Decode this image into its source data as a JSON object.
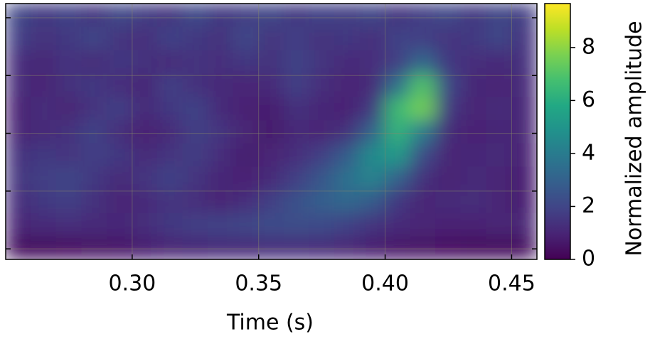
{
  "chart_data": {
    "type": "heatmap",
    "colormap": "viridis",
    "grid": true,
    "ylog": true,
    "xlabel": "Time (s)",
    "colorbar_label": "Normalized amplitude",
    "xlim": [
      0.25,
      0.46
    ],
    "xticks": [
      {
        "value": 0.3,
        "label": "0.30"
      },
      {
        "value": 0.35,
        "label": "0.35"
      },
      {
        "value": 0.4,
        "label": "0.40"
      },
      {
        "value": 0.45,
        "label": "0.45"
      }
    ],
    "ylim": [
      28.2,
      607
    ],
    "yticks": [
      32,
      64,
      128,
      256,
      512
    ],
    "clim": [
      0,
      9.66
    ],
    "cticks": [
      0,
      2,
      4,
      6,
      8
    ],
    "x": [
      0.255,
      0.265,
      0.275,
      0.285,
      0.295,
      0.305,
      0.315,
      0.325,
      0.335,
      0.345,
      0.355,
      0.365,
      0.375,
      0.385,
      0.395,
      0.405,
      0.415,
      0.425,
      0.435,
      0.445,
      0.455
    ],
    "y": [
      32.4,
      42.9,
      56.7,
      75,
      99,
      131,
      173,
      229,
      303,
      401,
      530
    ],
    "z": [
      [
        0.3,
        0.3,
        0.4,
        0.5,
        0.6,
        0.8,
        1.0,
        1.1,
        1.2,
        1.2,
        1.3,
        1.3,
        1.2,
        1.0,
        0.8,
        0.6,
        0.5,
        0.4,
        0.3,
        0.3,
        0.3
      ],
      [
        1.0,
        1.2,
        1.3,
        1.2,
        1.1,
        1.3,
        1.6,
        1.8,
        1.9,
        2.0,
        2.2,
        2.3,
        2.2,
        1.9,
        1.5,
        1.2,
        1.0,
        0.9,
        0.9,
        1.0,
        1.0
      ],
      [
        1.3,
        1.6,
        1.8,
        1.4,
        1.0,
        1.2,
        1.5,
        1.3,
        1.0,
        1.3,
        1.8,
        2.4,
        2.9,
        3.2,
        2.8,
        1.6,
        1.0,
        1.2,
        1.3,
        1.0,
        0.8
      ],
      [
        1.5,
        1.8,
        2.0,
        1.6,
        1.2,
        1.5,
        1.9,
        1.5,
        1.1,
        0.9,
        1.2,
        1.8,
        2.6,
        3.6,
        4.3,
        3.0,
        1.4,
        0.9,
        1.2,
        1.0,
        0.8
      ],
      [
        1.4,
        1.6,
        1.5,
        1.8,
        1.6,
        1.2,
        1.5,
        1.7,
        1.3,
        0.8,
        1.0,
        1.3,
        1.8,
        2.8,
        4.6,
        5.2,
        2.2,
        1.0,
        1.1,
        1.2,
        0.9
      ],
      [
        1.0,
        1.2,
        1.4,
        1.9,
        1.3,
        0.9,
        1.2,
        1.8,
        1.5,
        1.0,
        0.7,
        1.2,
        1.0,
        1.4,
        3.0,
        6.3,
        4.0,
        1.2,
        0.9,
        1.1,
        1.0
      ],
      [
        0.9,
        1.3,
        1.0,
        1.5,
        1.8,
        1.2,
        1.6,
        1.9,
        1.2,
        0.9,
        0.8,
        1.4,
        1.1,
        0.9,
        1.6,
        6.5,
        7.6,
        1.6,
        1.0,
        1.2,
        1.1
      ],
      [
        1.2,
        1.0,
        1.4,
        1.6,
        1.3,
        1.1,
        1.8,
        1.4,
        1.2,
        1.0,
        1.2,
        1.8,
        1.3,
        1.0,
        1.2,
        3.5,
        7.0,
        2.0,
        1.1,
        1.0,
        1.2
      ],
      [
        1.3,
        1.1,
        1.5,
        1.2,
        1.6,
        1.4,
        1.2,
        1.5,
        1.3,
        1.6,
        1.4,
        1.9,
        1.5,
        1.2,
        1.3,
        1.8,
        3.2,
        1.6,
        1.3,
        1.2,
        1.4
      ],
      [
        1.8,
        1.4,
        1.6,
        2.0,
        1.5,
        1.3,
        1.9,
        1.6,
        1.4,
        2.1,
        1.5,
        1.8,
        1.4,
        1.6,
        1.3,
        1.9,
        1.8,
        1.5,
        1.6,
        2.0,
        1.5
      ],
      [
        2.0,
        1.6,
        1.9,
        1.5,
        2.1,
        1.7,
        1.5,
        2.2,
        1.6,
        1.8,
        2.0,
        1.6,
        1.9,
        1.7,
        2.0,
        1.5,
        1.8,
        2.1,
        1.6,
        2.0,
        1.7
      ]
    ]
  }
}
